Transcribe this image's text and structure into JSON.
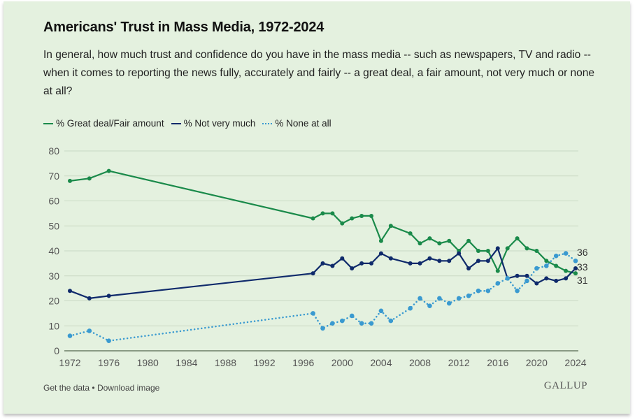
{
  "header": {
    "title": "Americans' Trust in Mass Media, 1972-2024",
    "subtitle": "In general, how much trust and confidence do you have in the mass media -- such as newspapers, TV and radio -- when it comes to reporting the news fully, accurately and fairly -- a great deal, a fair amount, not very much or none at all?"
  },
  "legend": [
    {
      "label": "% Great deal/Fair amount",
      "style": "solid",
      "color": "#1a8a4a"
    },
    {
      "label": "% Not very much",
      "style": "solid",
      "color": "#0f2a6b"
    },
    {
      "label": "% None at all",
      "style": "dotted",
      "color": "#3a9ad0"
    }
  ],
  "footer": {
    "get_data": "Get the data",
    "separator": "•",
    "download": "Download image",
    "brand": "GALLUP"
  },
  "chart_data": {
    "type": "line",
    "title": "Americans' Trust in Mass Media, 1972-2024",
    "xlabel": "",
    "ylabel": "",
    "xlim": [
      1972,
      2024
    ],
    "ylim": [
      0,
      80
    ],
    "xticks": [
      1972,
      1976,
      1980,
      1984,
      1988,
      1992,
      1996,
      2000,
      2004,
      2008,
      2012,
      2016,
      2020,
      2024
    ],
    "yticks": [
      0,
      10,
      20,
      30,
      40,
      50,
      60,
      70,
      80
    ],
    "grid": true,
    "legend_position": "top-left",
    "x": [
      1972,
      1974,
      1976,
      1997,
      1998,
      1999,
      2000,
      2001,
      2002,
      2003,
      2004,
      2005,
      2007,
      2008,
      2009,
      2010,
      2011,
      2012,
      2013,
      2014,
      2015,
      2016,
      2017,
      2018,
      2019,
      2020,
      2021,
      2022,
      2023,
      2024
    ],
    "series": [
      {
        "name": "% Great deal/Fair amount",
        "color": "#1a8a4a",
        "style": "solid",
        "values": [
          68,
          69,
          72,
          53,
          55,
          55,
          51,
          53,
          54,
          54,
          44,
          50,
          47,
          43,
          45,
          43,
          44,
          40,
          44,
          40,
          40,
          32,
          41,
          45,
          41,
          40,
          36,
          34,
          32,
          31
        ],
        "end_label": "31"
      },
      {
        "name": "% Not very much",
        "color": "#0f2a6b",
        "style": "solid",
        "values": [
          24,
          21,
          22,
          31,
          35,
          34,
          37,
          33,
          35,
          35,
          39,
          37,
          35,
          35,
          37,
          36,
          36,
          39,
          33,
          36,
          36,
          41,
          29,
          30,
          30,
          27,
          29,
          28,
          29,
          33
        ],
        "end_label": "33"
      },
      {
        "name": "% None at all",
        "color": "#3a9ad0",
        "style": "dotted",
        "values": [
          6,
          8,
          4,
          15,
          9,
          11,
          12,
          14,
          11,
          11,
          16,
          12,
          17,
          21,
          18,
          21,
          19,
          21,
          22,
          24,
          24,
          27,
          29,
          24,
          28,
          33,
          34,
          38,
          39,
          36
        ],
        "end_label": "36"
      }
    ]
  }
}
